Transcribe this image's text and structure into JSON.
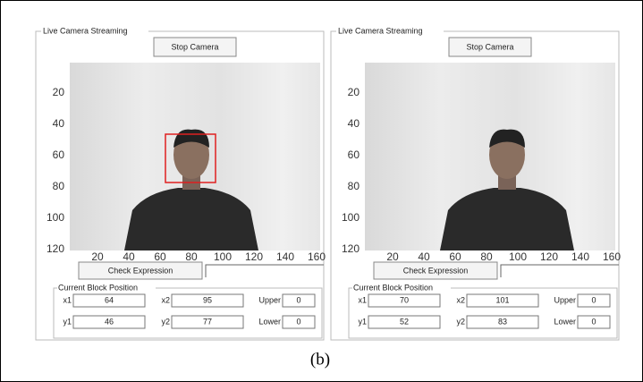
{
  "panels": [
    {
      "title": "Live Camera Streaming",
      "stop_button": "Stop Camera",
      "yticks": [
        20,
        40,
        60,
        80,
        100,
        120
      ],
      "xticks": [
        20,
        40,
        60,
        80,
        100,
        120,
        140,
        160
      ],
      "check_button": "Check Expression",
      "block_title": "Current Block Position",
      "fields": [
        [
          {
            "label": "x1",
            "value": "64"
          },
          {
            "label": "x2",
            "value": "95"
          },
          {
            "label": "Upper",
            "value": "0"
          }
        ],
        [
          {
            "label": "y1",
            "value": "46"
          },
          {
            "label": "y2",
            "value": "77"
          },
          {
            "label": "Lower",
            "value": "0"
          }
        ]
      ]
    },
    {
      "title": "Live Camera Streaming",
      "stop_button": "Stop Camera",
      "yticks": [
        20,
        40,
        60,
        80,
        100,
        120
      ],
      "xticks": [
        20,
        40,
        60,
        80,
        100,
        120,
        140,
        160
      ],
      "check_button": "Check Expression",
      "block_title": "Current Block Position",
      "fields": [
        [
          {
            "label": "x1",
            "value": "70"
          },
          {
            "label": "x2",
            "value": "101"
          },
          {
            "label": "Upper",
            "value": "0"
          }
        ],
        [
          {
            "label": "y1",
            "value": "52"
          },
          {
            "label": "y2",
            "value": "83"
          },
          {
            "label": "Lower",
            "value": "0"
          }
        ]
      ]
    }
  ],
  "caption": "(b)"
}
